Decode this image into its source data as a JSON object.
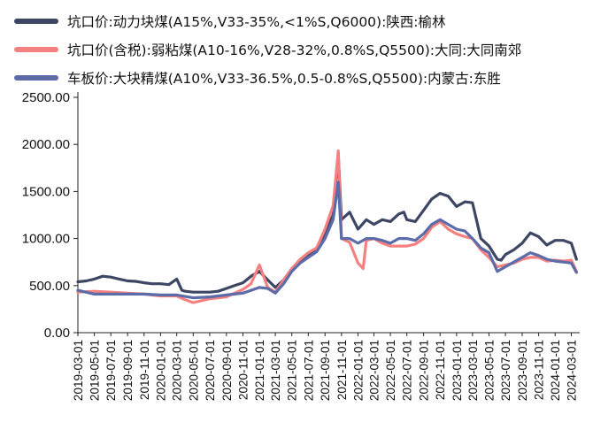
{
  "chart_data": {
    "type": "line",
    "title": "",
    "xlabel": "",
    "ylabel": "",
    "ylim": [
      0,
      2500
    ],
    "yticks": [
      "0.00",
      "500.00",
      "1000.00",
      "1500.00",
      "2000.00",
      "2500.00"
    ],
    "xticks": [
      "2019-03-01",
      "2019-05-01",
      "2019-07-01",
      "2019-09-01",
      "2019-11-01",
      "2020-01-01",
      "2020-03-01",
      "2020-05-01",
      "2020-07-01",
      "2020-09-01",
      "2020-11-01",
      "2021-01-01",
      "2021-03-01",
      "2021-05-01",
      "2021-07-01",
      "2021-09-01",
      "2021-11-01",
      "2022-01-01",
      "2022-03-01",
      "2022-05-01",
      "2022-07-01",
      "2022-09-01",
      "2022-11-01",
      "2023-01-01",
      "2023-03-01",
      "2023-05-01",
      "2023-07-01",
      "2023-09-01",
      "2023-11-01",
      "2024-01-01",
      "2024-03-01"
    ],
    "grid": false,
    "legend_position": "top-left",
    "series": [
      {
        "name": "坑口价:动力块煤(A15%,V33-35%,<1%S,Q6000):陕西:榆林",
        "color": "#3d4764",
        "points": [
          [
            "2019-03-01",
            540
          ],
          [
            "2019-04-01",
            550
          ],
          [
            "2019-05-01",
            570
          ],
          [
            "2019-06-01",
            600
          ],
          [
            "2019-07-01",
            590
          ],
          [
            "2019-08-01",
            570
          ],
          [
            "2019-09-01",
            550
          ],
          [
            "2019-10-01",
            545
          ],
          [
            "2019-11-01",
            530
          ],
          [
            "2019-12-01",
            520
          ],
          [
            "2020-01-01",
            520
          ],
          [
            "2020-02-01",
            510
          ],
          [
            "2020-03-01",
            570
          ],
          [
            "2020-03-20",
            450
          ],
          [
            "2020-04-01",
            440
          ],
          [
            "2020-05-01",
            430
          ],
          [
            "2020-06-01",
            430
          ],
          [
            "2020-07-01",
            430
          ],
          [
            "2020-08-01",
            440
          ],
          [
            "2020-09-01",
            470
          ],
          [
            "2020-10-01",
            500
          ],
          [
            "2020-11-01",
            530
          ],
          [
            "2020-12-01",
            600
          ],
          [
            "2021-01-01",
            650
          ],
          [
            "2021-02-01",
            560
          ],
          [
            "2021-03-01",
            480
          ],
          [
            "2021-04-01",
            560
          ],
          [
            "2021-05-01",
            680
          ],
          [
            "2021-06-01",
            760
          ],
          [
            "2021-07-01",
            820
          ],
          [
            "2021-08-01",
            880
          ],
          [
            "2021-09-01",
            1050
          ],
          [
            "2021-10-01",
            1250
          ],
          [
            "2021-10-20",
            1900
          ],
          [
            "2021-11-01",
            1200
          ],
          [
            "2021-12-01",
            1280
          ],
          [
            "2022-01-01",
            1100
          ],
          [
            "2022-02-01",
            1200
          ],
          [
            "2022-03-01",
            1150
          ],
          [
            "2022-04-01",
            1200
          ],
          [
            "2022-05-01",
            1180
          ],
          [
            "2022-06-01",
            1260
          ],
          [
            "2022-06-20",
            1280
          ],
          [
            "2022-07-01",
            1200
          ],
          [
            "2022-08-01",
            1180
          ],
          [
            "2022-09-01",
            1300
          ],
          [
            "2022-10-01",
            1420
          ],
          [
            "2022-11-01",
            1480
          ],
          [
            "2022-12-01",
            1450
          ],
          [
            "2023-01-01",
            1340
          ],
          [
            "2023-02-01",
            1390
          ],
          [
            "2023-03-01",
            1380
          ],
          [
            "2023-04-01",
            1000
          ],
          [
            "2023-05-01",
            920
          ],
          [
            "2023-06-01",
            780
          ],
          [
            "2023-06-15",
            770
          ],
          [
            "2023-07-01",
            830
          ],
          [
            "2023-08-01",
            880
          ],
          [
            "2023-09-01",
            950
          ],
          [
            "2023-10-01",
            1060
          ],
          [
            "2023-11-01",
            1020
          ],
          [
            "2023-12-01",
            930
          ],
          [
            "2024-01-01",
            980
          ],
          [
            "2024-02-01",
            980
          ],
          [
            "2024-03-01",
            950
          ],
          [
            "2024-03-20",
            780
          ]
        ]
      },
      {
        "name": "坑口价(含税):弱粘煤(A10-16%,V28-32%,0.8%S,Q5500):大同:大同南郊",
        "color": "#f48080",
        "points": [
          [
            "2019-03-01",
            430
          ],
          [
            "2019-05-01",
            440
          ],
          [
            "2019-07-01",
            430
          ],
          [
            "2019-09-01",
            420
          ],
          [
            "2019-11-01",
            410
          ],
          [
            "2020-01-01",
            390
          ],
          [
            "2020-03-01",
            390
          ],
          [
            "2020-04-01",
            350
          ],
          [
            "2020-05-01",
            320
          ],
          [
            "2020-06-01",
            340
          ],
          [
            "2020-07-01",
            360
          ],
          [
            "2020-08-01",
            370
          ],
          [
            "2020-09-01",
            380
          ],
          [
            "2020-10-01",
            420
          ],
          [
            "2020-11-01",
            460
          ],
          [
            "2020-12-01",
            520
          ],
          [
            "2021-01-01",
            720
          ],
          [
            "2021-02-01",
            480
          ],
          [
            "2021-03-01",
            430
          ],
          [
            "2021-04-01",
            560
          ],
          [
            "2021-05-01",
            680
          ],
          [
            "2021-06-01",
            780
          ],
          [
            "2021-07-01",
            850
          ],
          [
            "2021-08-01",
            900
          ],
          [
            "2021-09-01",
            1100
          ],
          [
            "2021-10-01",
            1350
          ],
          [
            "2021-10-20",
            1930
          ],
          [
            "2021-11-01",
            1000
          ],
          [
            "2021-12-01",
            960
          ],
          [
            "2022-01-01",
            740
          ],
          [
            "2022-01-20",
            680
          ],
          [
            "2022-02-01",
            980
          ],
          [
            "2022-03-01",
            1000
          ],
          [
            "2022-04-01",
            950
          ],
          [
            "2022-05-01",
            920
          ],
          [
            "2022-06-01",
            920
          ],
          [
            "2022-07-01",
            920
          ],
          [
            "2022-08-01",
            940
          ],
          [
            "2022-09-01",
            1000
          ],
          [
            "2022-10-01",
            1120
          ],
          [
            "2022-11-01",
            1180
          ],
          [
            "2022-12-01",
            1100
          ],
          [
            "2023-01-01",
            1050
          ],
          [
            "2023-02-01",
            1020
          ],
          [
            "2023-03-01",
            1000
          ],
          [
            "2023-04-01",
            880
          ],
          [
            "2023-05-01",
            800
          ],
          [
            "2023-06-01",
            700
          ],
          [
            "2023-07-01",
            720
          ],
          [
            "2023-08-01",
            740
          ],
          [
            "2023-09-01",
            780
          ],
          [
            "2023-10-01",
            800
          ],
          [
            "2023-11-01",
            800
          ],
          [
            "2023-12-01",
            760
          ],
          [
            "2024-01-01",
            770
          ],
          [
            "2024-02-01",
            760
          ],
          [
            "2024-03-01",
            770
          ],
          [
            "2024-03-20",
            650
          ]
        ]
      },
      {
        "name": "车板价:大块精煤(A10%,V33-36.5%,0.5-0.8%S,Q5500):内蒙古:东胜",
        "color": "#5b6ca8",
        "points": [
          [
            "2019-03-01",
            450
          ],
          [
            "2019-05-01",
            410
          ],
          [
            "2019-07-01",
            410
          ],
          [
            "2019-09-01",
            410
          ],
          [
            "2019-11-01",
            410
          ],
          [
            "2020-01-01",
            400
          ],
          [
            "2020-03-01",
            400
          ],
          [
            "2020-05-01",
            370
          ],
          [
            "2020-07-01",
            380
          ],
          [
            "2020-09-01",
            400
          ],
          [
            "2020-11-01",
            420
          ],
          [
            "2021-01-01",
            480
          ],
          [
            "2021-02-01",
            470
          ],
          [
            "2021-03-01",
            420
          ],
          [
            "2021-04-01",
            520
          ],
          [
            "2021-05-01",
            650
          ],
          [
            "2021-06-01",
            740
          ],
          [
            "2021-07-01",
            800
          ],
          [
            "2021-08-01",
            860
          ],
          [
            "2021-09-01",
            1000
          ],
          [
            "2021-10-01",
            1200
          ],
          [
            "2021-10-20",
            1600
          ],
          [
            "2021-11-01",
            1000
          ],
          [
            "2021-12-01",
            1000
          ],
          [
            "2022-01-01",
            950
          ],
          [
            "2022-02-01",
            1000
          ],
          [
            "2022-03-01",
            1000
          ],
          [
            "2022-04-01",
            980
          ],
          [
            "2022-05-01",
            950
          ],
          [
            "2022-06-01",
            1000
          ],
          [
            "2022-07-01",
            1000
          ],
          [
            "2022-08-01",
            980
          ],
          [
            "2022-09-01",
            1050
          ],
          [
            "2022-10-01",
            1150
          ],
          [
            "2022-11-01",
            1200
          ],
          [
            "2022-12-01",
            1150
          ],
          [
            "2023-01-01",
            1100
          ],
          [
            "2023-02-01",
            1080
          ],
          [
            "2023-03-01",
            1000
          ],
          [
            "2023-04-01",
            900
          ],
          [
            "2023-05-01",
            850
          ],
          [
            "2023-06-01",
            650
          ],
          [
            "2023-07-01",
            700
          ],
          [
            "2023-08-01",
            750
          ],
          [
            "2023-09-01",
            800
          ],
          [
            "2023-10-01",
            850
          ],
          [
            "2023-11-01",
            820
          ],
          [
            "2023-12-01",
            780
          ],
          [
            "2024-01-01",
            760
          ],
          [
            "2024-02-01",
            750
          ],
          [
            "2024-03-01",
            740
          ],
          [
            "2024-03-20",
            640
          ]
        ]
      }
    ]
  }
}
